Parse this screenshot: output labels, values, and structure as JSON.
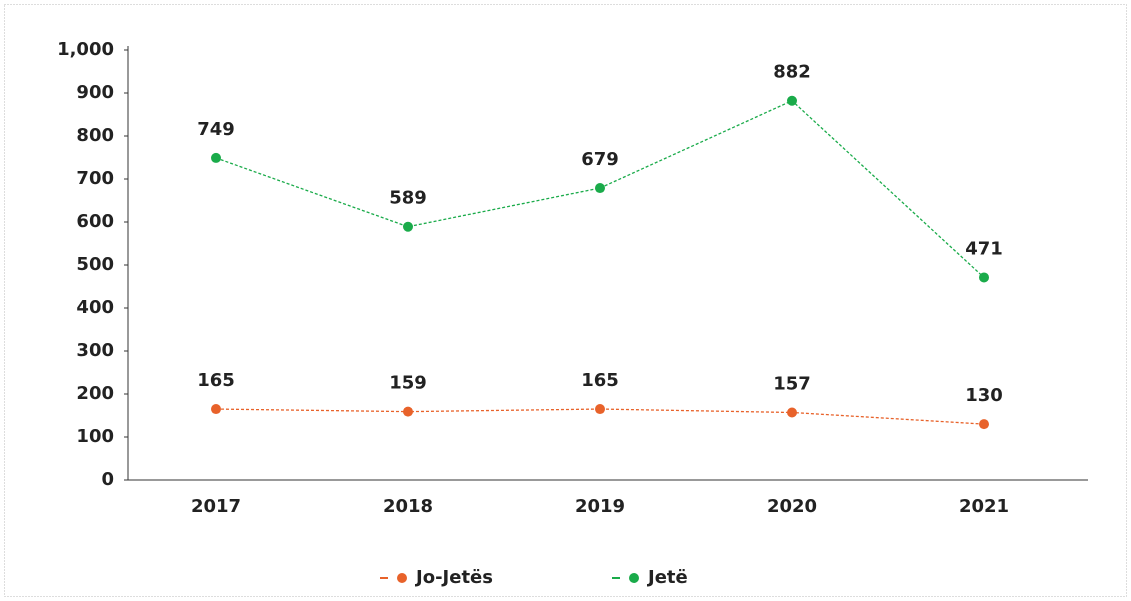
{
  "chart_data": {
    "type": "line",
    "categories": [
      "2017",
      "2018",
      "2019",
      "2020",
      "2021"
    ],
    "series": [
      {
        "name": "Jo-Jetës",
        "color": "#e8622a",
        "values": [
          165,
          159,
          165,
          157,
          130
        ]
      },
      {
        "name": "Jetë",
        "color": "#1aab4a",
        "values": [
          749,
          589,
          679,
          882,
          471
        ]
      }
    ],
    "ylim": [
      0,
      1000
    ],
    "yticks": [
      0,
      100,
      200,
      300,
      400,
      500,
      600,
      700,
      800,
      900,
      {
        "value": 1000,
        "label": "1,000"
      }
    ],
    "legend": "bottom"
  }
}
